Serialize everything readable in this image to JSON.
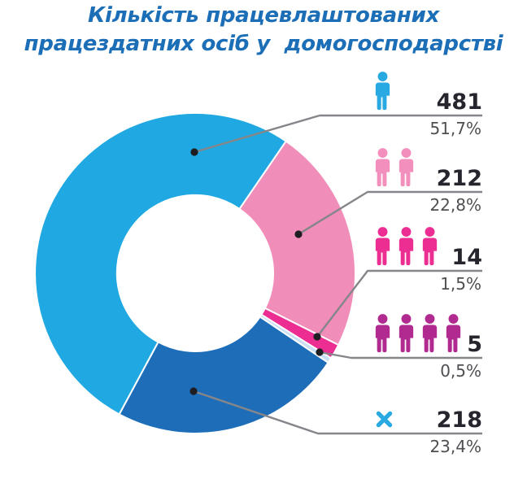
{
  "title": {
    "line1": "Кількість працевлаштованих",
    "line2": "працездатних осіб у  домогосподарстві"
  },
  "chart_data": {
    "type": "pie",
    "variant": "donut",
    "title": "Кількість працевлаштованих працездатних осіб у домогосподарстві",
    "legend_position": "right",
    "start_angle_deg": 34.5,
    "clockwise_order": [
      "two-persons",
      "three-persons",
      "four-persons",
      "zero-persons",
      "one-person"
    ],
    "segments": [
      {
        "key": "one-person",
        "persons": 1,
        "icon": "person",
        "value": 481,
        "percent": "51,7%",
        "slice_color": "#1fa8e1",
        "icon_color": "#29a9e1"
      },
      {
        "key": "two-persons",
        "persons": 2,
        "icon": "person",
        "value": 212,
        "percent": "22,8%",
        "slice_color": "#f18db9",
        "icon_color": "#f28fbc"
      },
      {
        "key": "three-persons",
        "persons": 3,
        "icon": "person",
        "value": 14,
        "percent": "1,5%",
        "slice_color": "#ec2d92",
        "icon_color": "#ec2d92"
      },
      {
        "key": "four-persons",
        "persons": 4,
        "icon": "person",
        "value": 5,
        "percent": "0,5%",
        "slice_color": "#c9e0f4",
        "icon_color": "#b02a90"
      },
      {
        "key": "zero-persons",
        "persons": 0,
        "icon": "x-mark",
        "value": 218,
        "percent": "23,4%",
        "slice_color": "#1d6db9",
        "icon_color": "#29a9e1"
      }
    ],
    "colors": {
      "leader_line": "#85868a",
      "dot": "#1e1e22",
      "number_text": "#26242c",
      "percent_text": "#4e4f52",
      "title_text": "#1c6eb7",
      "background": "#ffffff"
    }
  }
}
